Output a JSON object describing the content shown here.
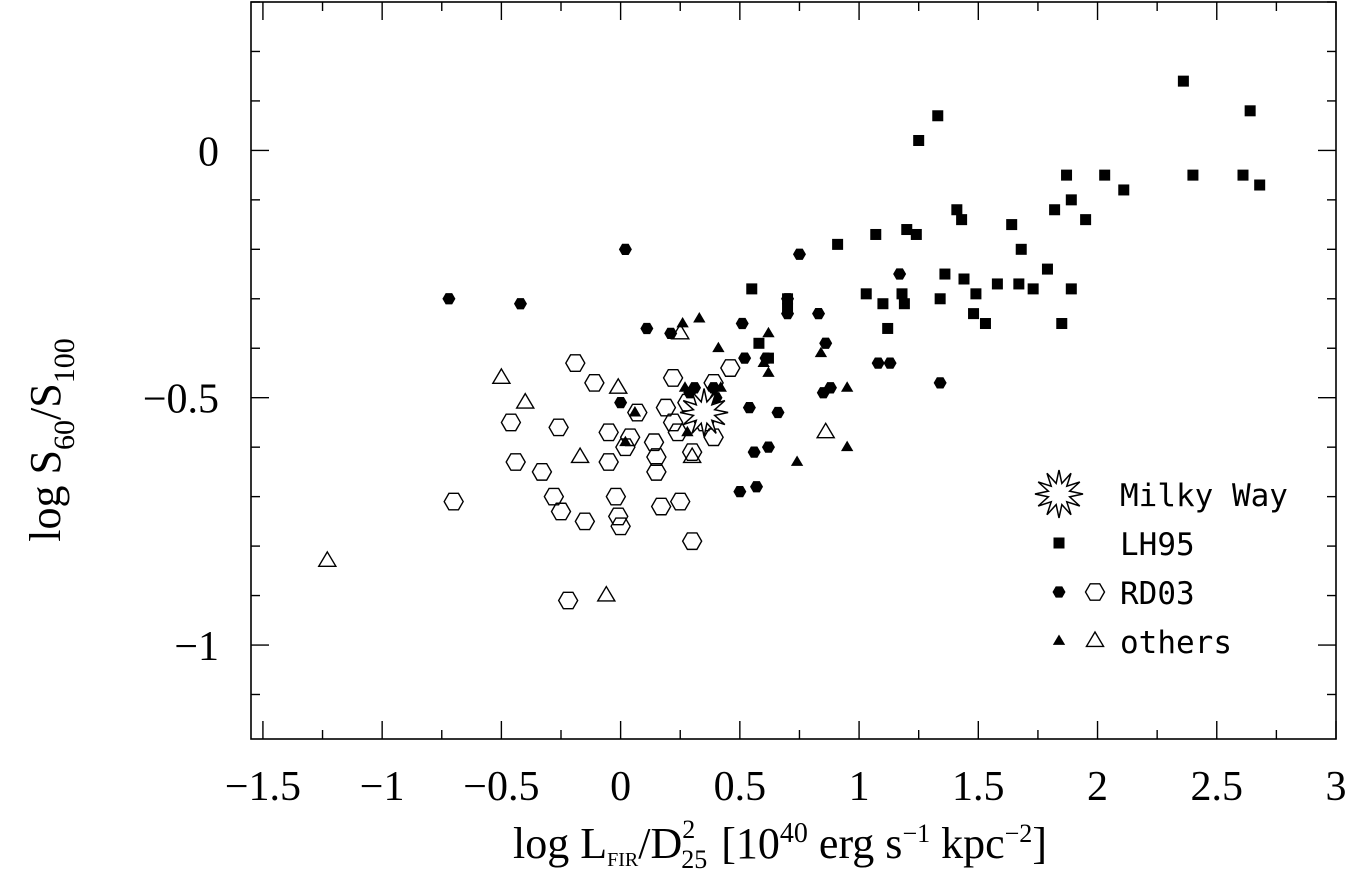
{
  "chart_data": {
    "type": "scatter",
    "xlabel": {
      "base": "log L",
      "base_sub": "FIR",
      "slash": "/D",
      "d_sup": "2",
      "d_sub": "25",
      "bracket": "[10",
      "exp": "40",
      "units_a": " erg s",
      "exp2": "−1",
      "units_b": " kpc",
      "exp3": "−2",
      "close": "]"
    },
    "ylabel": {
      "pre": "log S",
      "sub1": "60",
      "slash": "/S",
      "sub2": "100"
    },
    "xlim": [
      -1.55,
      3.0
    ],
    "ylim": [
      -1.19,
      0.3
    ],
    "x_ticks_major": [
      -1.5,
      -1,
      -0.5,
      0,
      0.5,
      1,
      1.5,
      2,
      2.5,
      3
    ],
    "x_tick_labels": [
      "−1.5",
      "−1",
      "−0.5",
      "0",
      "0.5",
      "1",
      "1.5",
      "2",
      "2.5",
      "3"
    ],
    "y_ticks_major": [
      -1,
      -0.5,
      0
    ],
    "y_tick_labels": [
      "−1",
      "−0.5",
      "0"
    ],
    "legend": {
      "position": "bottom-right",
      "entries": [
        {
          "label": "Milky Way",
          "markers": [
            "star"
          ]
        },
        {
          "label": "LH95",
          "markers": [
            "filled-square"
          ]
        },
        {
          "label": "RD03",
          "markers": [
            "filled-hexagon",
            "open-hexagon"
          ]
        },
        {
          "label": "others",
          "markers": [
            "filled-triangle",
            "open-triangle"
          ]
        }
      ]
    },
    "series": [
      {
        "name": "Milky Way",
        "marker": "star",
        "points": [
          [
            0.35,
            -0.53
          ]
        ]
      },
      {
        "name": "LH95",
        "marker": "filled-square",
        "points": [
          [
            0.55,
            -0.28
          ],
          [
            0.58,
            -0.39
          ],
          [
            0.62,
            -0.42
          ],
          [
            0.7,
            -0.3
          ],
          [
            0.7,
            -0.32
          ],
          [
            0.91,
            -0.19
          ],
          [
            1.03,
            -0.29
          ],
          [
            1.07,
            -0.17
          ],
          [
            1.1,
            -0.31
          ],
          [
            1.12,
            -0.36
          ],
          [
            1.18,
            -0.29
          ],
          [
            1.19,
            -0.31
          ],
          [
            1.2,
            -0.16
          ],
          [
            1.24,
            -0.17
          ],
          [
            1.25,
            0.02
          ],
          [
            1.33,
            0.07
          ],
          [
            1.34,
            -0.3
          ],
          [
            1.36,
            -0.25
          ],
          [
            1.41,
            -0.12
          ],
          [
            1.43,
            -0.14
          ],
          [
            1.44,
            -0.26
          ],
          [
            1.48,
            -0.33
          ],
          [
            1.49,
            -0.29
          ],
          [
            1.53,
            -0.35
          ],
          [
            1.58,
            -0.27
          ],
          [
            1.64,
            -0.15
          ],
          [
            1.67,
            -0.27
          ],
          [
            1.68,
            -0.2
          ],
          [
            1.73,
            -0.28
          ],
          [
            1.79,
            -0.24
          ],
          [
            1.82,
            -0.12
          ],
          [
            1.85,
            -0.35
          ],
          [
            1.87,
            -0.05
          ],
          [
            1.89,
            -0.1
          ],
          [
            1.89,
            -0.28
          ],
          [
            1.95,
            -0.14
          ],
          [
            2.03,
            -0.05
          ],
          [
            2.11,
            -0.08
          ],
          [
            2.36,
            0.14
          ],
          [
            2.4,
            -0.05
          ],
          [
            2.61,
            -0.05
          ],
          [
            2.64,
            0.08
          ],
          [
            2.68,
            -0.07
          ]
        ]
      },
      {
        "name": "RD03",
        "marker": "filled-hexagon",
        "points": [
          [
            -0.72,
            -0.3
          ],
          [
            -0.42,
            -0.31
          ],
          [
            0.02,
            -0.2
          ],
          [
            0.0,
            -0.51
          ],
          [
            0.11,
            -0.36
          ],
          [
            0.21,
            -0.37
          ],
          [
            0.29,
            -0.49
          ],
          [
            0.31,
            -0.48
          ],
          [
            0.39,
            -0.48
          ],
          [
            0.4,
            -0.5
          ],
          [
            0.5,
            -0.69
          ],
          [
            0.51,
            -0.35
          ],
          [
            0.52,
            -0.42
          ],
          [
            0.54,
            -0.52
          ],
          [
            0.56,
            -0.61
          ],
          [
            0.57,
            -0.68
          ],
          [
            0.61,
            -0.42
          ],
          [
            0.62,
            -0.6
          ],
          [
            0.66,
            -0.53
          ],
          [
            0.7,
            -0.3
          ],
          [
            0.7,
            -0.33
          ],
          [
            0.75,
            -0.21
          ],
          [
            0.83,
            -0.33
          ],
          [
            0.85,
            -0.49
          ],
          [
            0.86,
            -0.39
          ],
          [
            0.88,
            -0.48
          ],
          [
            1.08,
            -0.43
          ],
          [
            1.13,
            -0.43
          ],
          [
            1.17,
            -0.25
          ],
          [
            1.34,
            -0.47
          ]
        ]
      },
      {
        "name": "RD03",
        "marker": "open-hexagon",
        "points": [
          [
            -0.7,
            -0.71
          ],
          [
            -0.46,
            -0.55
          ],
          [
            -0.44,
            -0.63
          ],
          [
            -0.33,
            -0.65
          ],
          [
            -0.28,
            -0.7
          ],
          [
            -0.26,
            -0.56
          ],
          [
            -0.25,
            -0.73
          ],
          [
            -0.22,
            -0.91
          ],
          [
            -0.19,
            -0.43
          ],
          [
            -0.15,
            -0.75
          ],
          [
            -0.11,
            -0.47
          ],
          [
            -0.05,
            -0.57
          ],
          [
            -0.05,
            -0.63
          ],
          [
            -0.02,
            -0.7
          ],
          [
            -0.01,
            -0.74
          ],
          [
            0.0,
            -0.76
          ],
          [
            0.02,
            -0.6
          ],
          [
            0.04,
            -0.58
          ],
          [
            0.07,
            -0.53
          ],
          [
            0.14,
            -0.59
          ],
          [
            0.15,
            -0.62
          ],
          [
            0.15,
            -0.65
          ],
          [
            0.17,
            -0.72
          ],
          [
            0.19,
            -0.52
          ],
          [
            0.22,
            -0.46
          ],
          [
            0.22,
            -0.55
          ],
          [
            0.24,
            -0.57
          ],
          [
            0.25,
            -0.71
          ],
          [
            0.28,
            -0.51
          ],
          [
            0.3,
            -0.61
          ],
          [
            0.3,
            -0.79
          ],
          [
            0.35,
            -0.55
          ],
          [
            0.39,
            -0.58
          ],
          [
            0.39,
            -0.47
          ],
          [
            0.46,
            -0.44
          ]
        ]
      },
      {
        "name": "others",
        "marker": "filled-triangle",
        "points": [
          [
            0.02,
            -0.59
          ],
          [
            0.06,
            -0.53
          ],
          [
            0.26,
            -0.35
          ],
          [
            0.27,
            -0.48
          ],
          [
            0.28,
            -0.57
          ],
          [
            0.33,
            -0.34
          ],
          [
            0.41,
            -0.4
          ],
          [
            0.42,
            -0.48
          ],
          [
            0.6,
            -0.43
          ],
          [
            0.62,
            -0.37
          ],
          [
            0.62,
            -0.45
          ],
          [
            0.74,
            -0.63
          ],
          [
            0.84,
            -0.41
          ],
          [
            0.95,
            -0.48
          ],
          [
            0.95,
            -0.6
          ]
        ]
      },
      {
        "name": "others",
        "marker": "open-triangle",
        "points": [
          [
            -1.23,
            -0.83
          ],
          [
            -0.5,
            -0.46
          ],
          [
            -0.4,
            -0.51
          ],
          [
            -0.17,
            -0.62
          ],
          [
            -0.06,
            -0.9
          ],
          [
            -0.01,
            -0.48
          ],
          [
            0.25,
            -0.37
          ],
          [
            0.3,
            -0.62
          ],
          [
            0.86,
            -0.57
          ]
        ]
      }
    ]
  }
}
